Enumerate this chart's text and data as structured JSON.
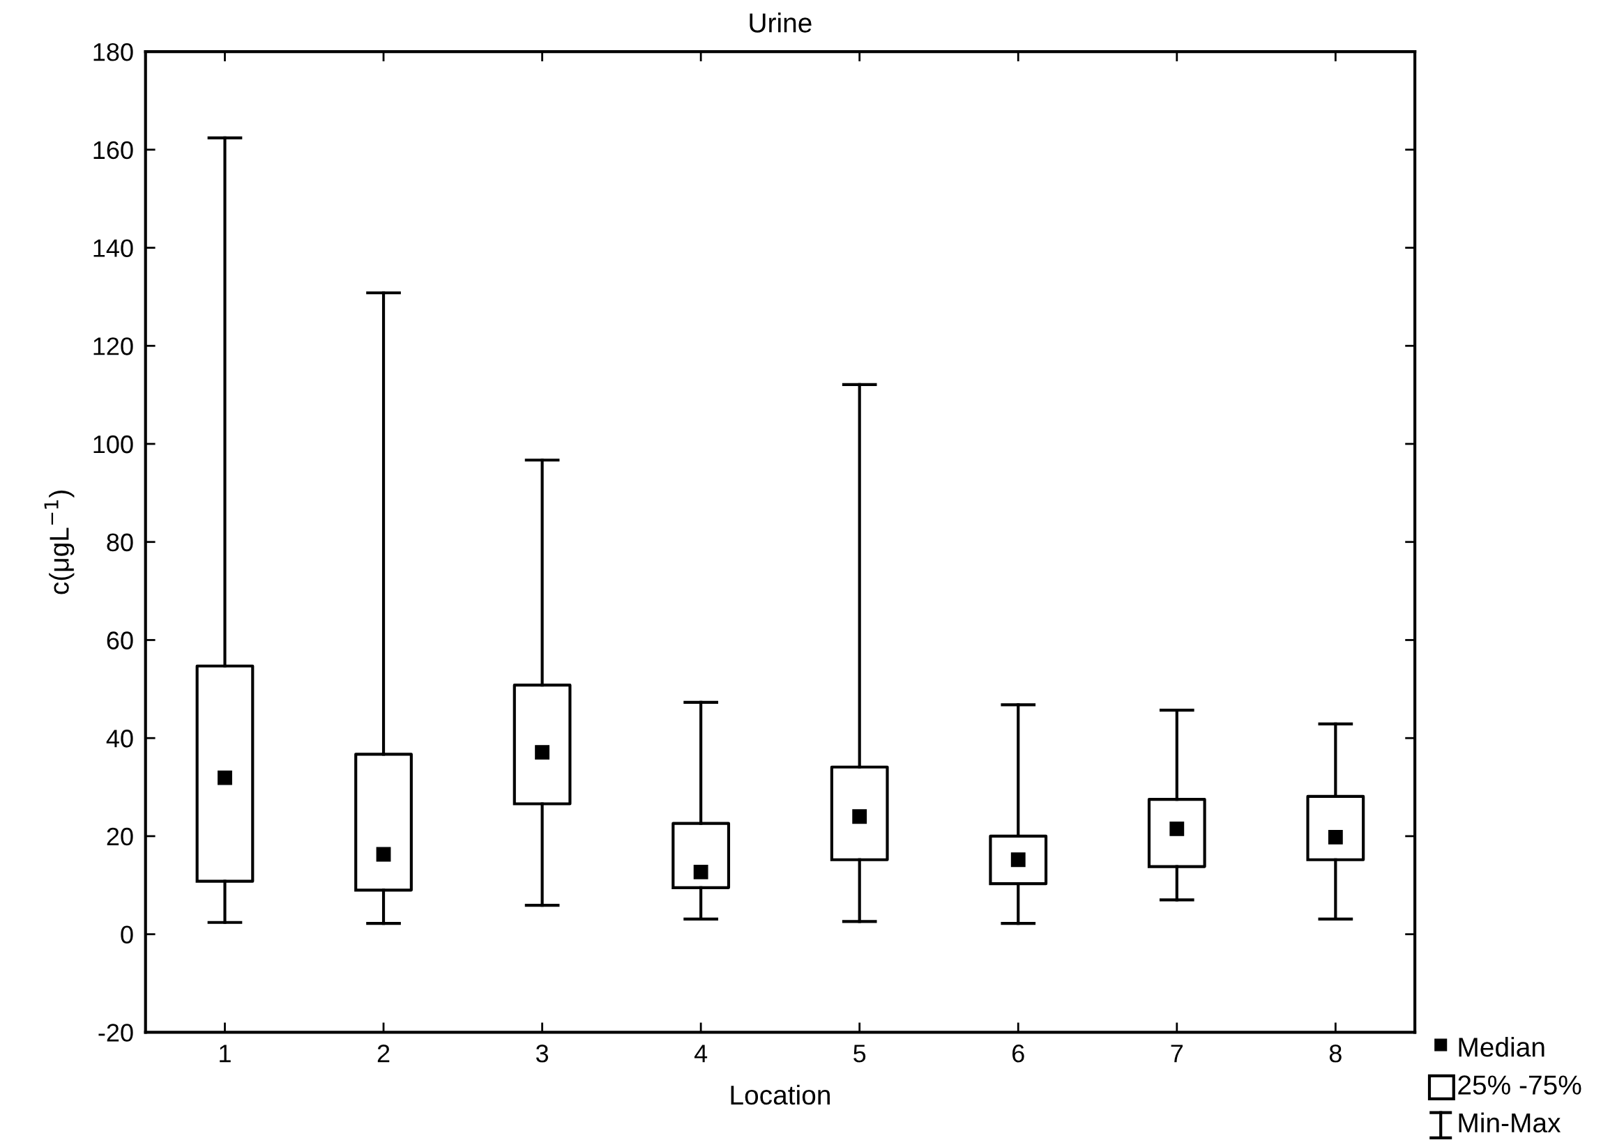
{
  "chart_data": {
    "type": "box",
    "title": "Urine",
    "xlabel": "Location",
    "ylabel": "c(μgL$^{−1}$)",
    "categories": [
      "1",
      "2",
      "3",
      "4",
      "5",
      "6",
      "7",
      "8"
    ],
    "boxes": [
      {
        "low": 2.4,
        "q1": 10.8,
        "median": 31.9,
        "q3": 54.7,
        "high": 162.4
      },
      {
        "low": 2.2,
        "q1": 9.0,
        "median": 16.3,
        "q3": 36.7,
        "high": 130.8
      },
      {
        "low": 5.9,
        "q1": 26.6,
        "median": 37.1,
        "q3": 50.8,
        "high": 96.7
      },
      {
        "low": 3.1,
        "q1": 9.5,
        "median": 12.7,
        "q3": 22.6,
        "high": 47.3
      },
      {
        "low": 2.6,
        "q1": 15.2,
        "median": 24.0,
        "q3": 34.1,
        "high": 112.1
      },
      {
        "low": 2.2,
        "q1": 10.3,
        "median": 15.2,
        "q3": 20.0,
        "high": 46.8
      },
      {
        "low": 7.0,
        "q1": 13.8,
        "median": 21.5,
        "q3": 27.5,
        "high": 45.7
      },
      {
        "low": 3.1,
        "q1": 15.2,
        "median": 19.8,
        "q3": 28.1,
        "high": 42.9
      }
    ],
    "color": "#000000",
    "ylim": [
      -20,
      180
    ],
    "yticks": [
      -20,
      0,
      20,
      40,
      60,
      80,
      100,
      120,
      140,
      160,
      180
    ],
    "marker": "square",
    "grid": false,
    "annotations": [
      "Median",
      "25% -75%",
      "Min-Max"
    ]
  }
}
